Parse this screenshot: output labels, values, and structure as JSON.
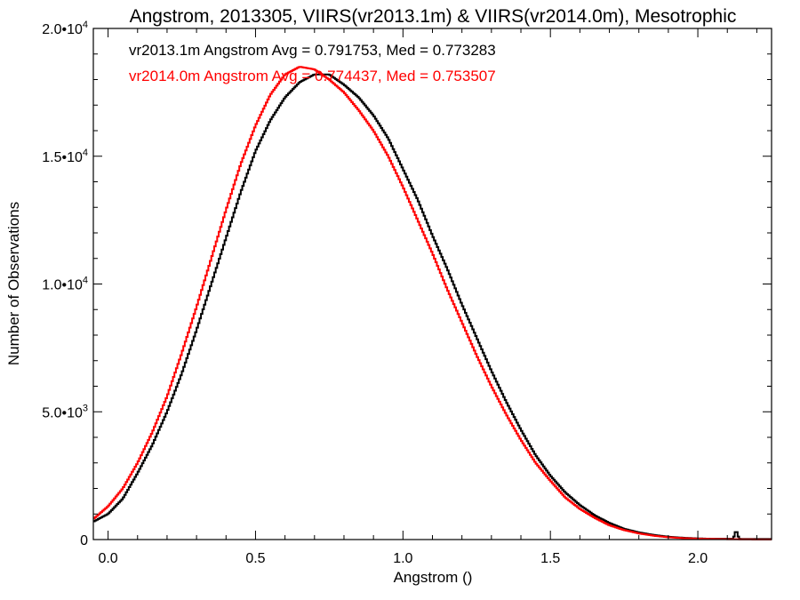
{
  "chart_data": {
    "type": "line",
    "title": "Angstrom, 2013305, VIIRS(vr2013.1m) & VIIRS(vr2014.0m), Mesotrophic",
    "xlabel": "Angstrom ()",
    "ylabel": "Number of Observations",
    "xlim": [
      -0.05,
      2.25
    ],
    "ylim": [
      0,
      20000
    ],
    "x_ticks": [
      {
        "value": 0.0,
        "label": "0.0"
      },
      {
        "value": 0.5,
        "label": "0.5"
      },
      {
        "value": 1.0,
        "label": "1.0"
      },
      {
        "value": 1.5,
        "label": "1.5"
      },
      {
        "value": 2.0,
        "label": "2.0"
      }
    ],
    "y_ticks": [
      {
        "value": 0,
        "mantissa": "0",
        "exp": ""
      },
      {
        "value": 5000,
        "mantissa": "5.0•10",
        "exp": "3"
      },
      {
        "value": 10000,
        "mantissa": "1.0•10",
        "exp": "4"
      },
      {
        "value": 15000,
        "mantissa": "1.5•10",
        "exp": "4"
      },
      {
        "value": 20000,
        "mantissa": "2.0•10",
        "exp": "4"
      }
    ],
    "grid": false,
    "annotations": [
      {
        "text": "vr2013.1m Angstrom Avg = 0.791753, Med = 0.773283",
        "color": "#000000"
      },
      {
        "text": "vr2014.0m Angstrom Avg = 0.774437, Med = 0.753507",
        "color": "#ff0000"
      }
    ],
    "series": [
      {
        "color": "#000000",
        "x": [
          -0.05,
          0.0,
          0.05,
          0.1,
          0.15,
          0.2,
          0.25,
          0.3,
          0.35,
          0.4,
          0.45,
          0.5,
          0.55,
          0.6,
          0.65,
          0.7,
          0.75,
          0.8,
          0.85,
          0.9,
          0.95,
          1.0,
          1.05,
          1.1,
          1.15,
          1.2,
          1.25,
          1.3,
          1.35,
          1.4,
          1.45,
          1.5,
          1.55,
          1.6,
          1.65,
          1.7,
          1.75,
          1.8,
          1.85,
          1.9,
          1.95,
          2.0,
          2.05,
          2.1,
          2.12,
          2.13,
          2.14,
          2.15,
          2.25
        ],
        "values": [
          700,
          1000,
          1600,
          2600,
          3700,
          5000,
          6500,
          8200,
          10000,
          11800,
          13600,
          15200,
          16400,
          17300,
          17900,
          18200,
          18200,
          17800,
          17300,
          16600,
          15700,
          14500,
          13300,
          11900,
          10600,
          9200,
          7900,
          6600,
          5400,
          4300,
          3300,
          2500,
          1850,
          1350,
          950,
          650,
          420,
          280,
          180,
          110,
          70,
          45,
          30,
          30,
          30,
          380,
          30,
          20,
          20
        ]
      },
      {
        "color": "#ff0000",
        "x": [
          -0.05,
          0.0,
          0.05,
          0.1,
          0.15,
          0.2,
          0.25,
          0.3,
          0.35,
          0.4,
          0.45,
          0.5,
          0.55,
          0.6,
          0.65,
          0.7,
          0.75,
          0.8,
          0.85,
          0.9,
          0.95,
          1.0,
          1.05,
          1.1,
          1.15,
          1.2,
          1.25,
          1.3,
          1.35,
          1.4,
          1.45,
          1.5,
          1.55,
          1.6,
          1.65,
          1.7,
          1.75,
          1.8,
          1.85,
          1.9,
          1.95,
          2.0,
          2.05,
          2.1,
          2.15,
          2.2,
          2.25
        ],
        "values": [
          800,
          1300,
          2000,
          3000,
          4200,
          5600,
          7300,
          9100,
          11000,
          12900,
          14700,
          16200,
          17400,
          18200,
          18500,
          18400,
          18000,
          17500,
          16800,
          16000,
          15000,
          13800,
          12500,
          11200,
          9800,
          8500,
          7200,
          6000,
          4900,
          3900,
          3000,
          2300,
          1650,
          1200,
          850,
          560,
          370,
          240,
          150,
          90,
          55,
          35,
          25,
          15,
          10,
          5,
          5
        ]
      }
    ]
  }
}
